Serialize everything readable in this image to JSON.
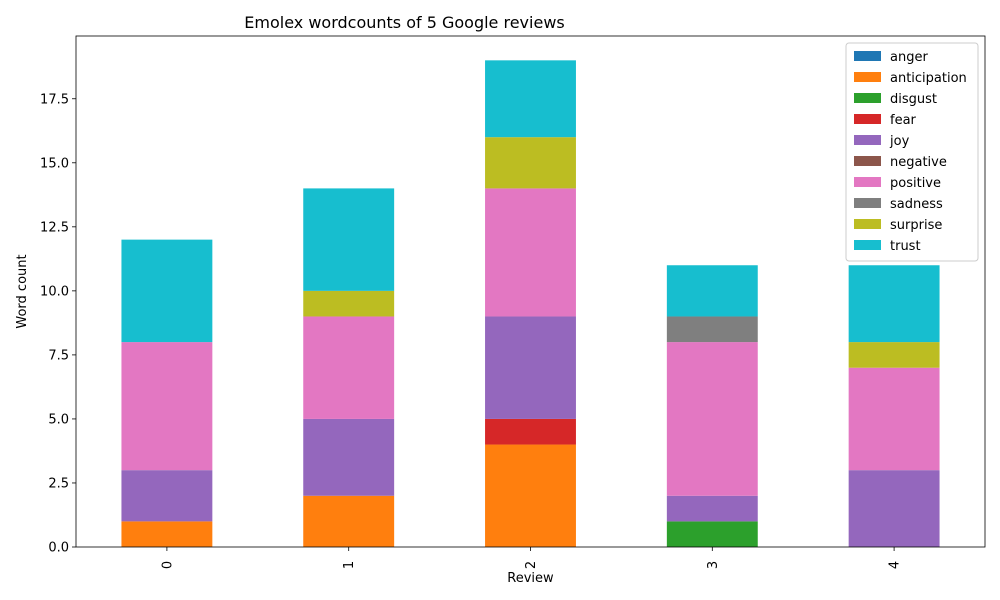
{
  "chart_data": {
    "type": "bar",
    "stacked": true,
    "title": "Emolex wordcounts of 5 Google reviews",
    "xlabel": "Review",
    "ylabel": "Word count",
    "categories": [
      "0",
      "1",
      "2",
      "3",
      "4"
    ],
    "ylim": [
      0,
      19.95
    ],
    "yticks": [
      "0.0",
      "2.5",
      "5.0",
      "7.5",
      "10.0",
      "12.5",
      "15.0",
      "17.5"
    ],
    "legend_position": "top-right",
    "grid": false,
    "series": [
      {
        "name": "anger",
        "color": "#1f77b4",
        "values": [
          0,
          0,
          0,
          0,
          0
        ]
      },
      {
        "name": "anticipation",
        "color": "#ff7f0e",
        "values": [
          1,
          2,
          4,
          0,
          0
        ]
      },
      {
        "name": "disgust",
        "color": "#2ca02c",
        "values": [
          0,
          0,
          0,
          1,
          0
        ]
      },
      {
        "name": "fear",
        "color": "#d62728",
        "values": [
          0,
          0,
          1,
          0,
          0
        ]
      },
      {
        "name": "joy",
        "color": "#9467bd",
        "values": [
          2,
          3,
          4,
          1,
          3
        ]
      },
      {
        "name": "negative",
        "color": "#8c564b",
        "values": [
          0,
          0,
          0,
          0,
          0
        ]
      },
      {
        "name": "positive",
        "color": "#e377c2",
        "values": [
          5,
          4,
          5,
          6,
          4
        ]
      },
      {
        "name": "sadness",
        "color": "#7f7f7f",
        "values": [
          0,
          0,
          0,
          1,
          0
        ]
      },
      {
        "name": "surprise",
        "color": "#bcbd22",
        "values": [
          0,
          1,
          2,
          0,
          1
        ]
      },
      {
        "name": "trust",
        "color": "#17becf",
        "values": [
          4,
          4,
          3,
          2,
          3
        ]
      }
    ]
  }
}
